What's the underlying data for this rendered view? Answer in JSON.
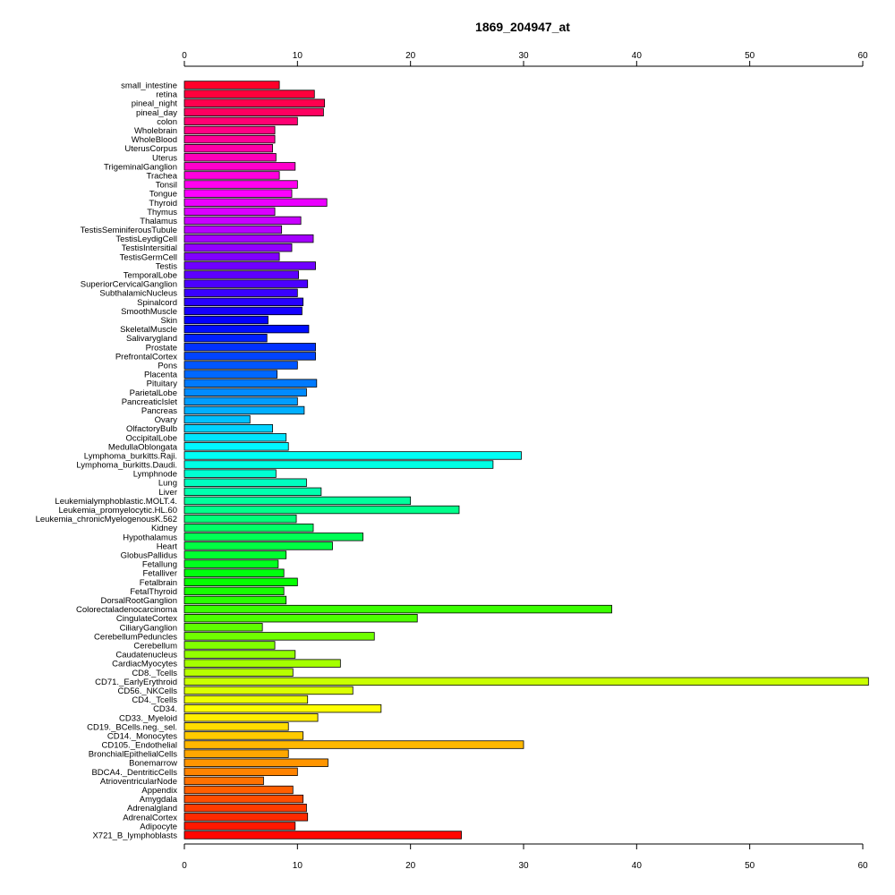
{
  "chart_data": {
    "type": "bar",
    "orientation": "horizontal",
    "title": "1869_204947_at",
    "xlabel": "",
    "ylabel": "",
    "xlim": [
      0,
      60
    ],
    "xticks": [
      0,
      10,
      20,
      30,
      40,
      50,
      60
    ],
    "xtick_labels": [
      "0",
      "10",
      "20",
      "30",
      "40",
      "50",
      "60"
    ],
    "axes": "top-and-bottom",
    "grid": false,
    "legend": "none",
    "color_scheme": "rainbow",
    "categories": [
      "small_intestine",
      "retina",
      "pineal_night",
      "pineal_day",
      "colon",
      "Wholebrain",
      "WholeBlood",
      "UterusCorpus",
      "Uterus",
      "TrigeminalGanglion",
      "Trachea",
      "Tonsil",
      "Tongue",
      "Thyroid",
      "Thymus",
      "Thalamus",
      "TestisSeminiferousTubule",
      "TestisLeydigCell",
      "TestisIntersitial",
      "TestisGermCell",
      "Testis",
      "TemporalLobe",
      "SuperiorCervicalGanglion",
      "SubthalamicNucleus",
      "Spinalcord",
      "SmoothMuscle",
      "Skin",
      "SkeletalMuscle",
      "Salivarygland",
      "Prostate",
      "PrefrontalCortex",
      "Pons",
      "Placenta",
      "Pituitary",
      "ParietalLobe",
      "PancreaticIslet",
      "Pancreas",
      "Ovary",
      "OlfactoryBulb",
      "OccipitalLobe",
      "MedullaOblongata",
      "Lymphoma_burkitts.Raji.",
      "Lymphoma_burkitts.Daudi.",
      "Lymphnode",
      "Lung",
      "Liver",
      "Leukemialymphoblastic.MOLT.4.",
      "Leukemia_promyelocytic.HL.60",
      "Leukemia_chronicMyelogenousK.562",
      "Kidney",
      "Hypothalamus",
      "Heart",
      "GlobusPallidus",
      "Fetallung",
      "Fetalliver",
      "Fetalbrain",
      "FetalThyroid",
      "DorsalRootGanglion",
      "Colorectaladenocarcinoma",
      "CingulateCortex",
      "CiliaryGanglion",
      "CerebellumPeduncles",
      "Cerebellum",
      "Caudatenucleus",
      "CardiacMyocytes",
      "CD8._Tcells",
      "CD71._EarlyErythroid",
      "CD56._NKCells",
      "CD4._Tcells",
      "CD34.",
      "CD33._Myeloid",
      "CD19._BCells.neg._sel.",
      "CD14._Monocytes",
      "CD105._Endothelial",
      "BronchialEpithelialCells",
      "Bonemarrow",
      "BDCA4._DentriticCells",
      "AtrioventricularNode",
      "Appendix",
      "Amygdala",
      "Adrenalgland",
      "AdrenalCortex",
      "Adipocyte",
      "X721_B_lymphoblasts"
    ],
    "values": [
      8.4,
      11.5,
      12.4,
      12.3,
      10.0,
      8.0,
      8.0,
      7.8,
      8.1,
      9.8,
      8.4,
      10.0,
      9.5,
      12.6,
      8.0,
      10.3,
      8.6,
      11.4,
      9.5,
      8.4,
      11.6,
      10.1,
      10.9,
      10.0,
      10.5,
      10.4,
      7.4,
      11.0,
      7.3,
      11.6,
      11.6,
      10.0,
      8.2,
      11.7,
      10.8,
      10.0,
      10.6,
      5.8,
      7.8,
      9.0,
      9.2,
      29.8,
      27.3,
      8.1,
      10.8,
      12.1,
      20.0,
      24.3,
      9.9,
      11.4,
      15.8,
      13.1,
      9.0,
      8.3,
      8.8,
      10.0,
      8.8,
      9.0,
      37.8,
      20.6,
      6.9,
      16.8,
      8.0,
      9.8,
      13.8,
      9.6,
      60.5,
      14.9,
      10.9,
      17.4,
      11.8,
      9.2,
      10.5,
      30.0,
      9.2,
      12.7,
      10.0,
      7.0,
      9.6,
      10.5,
      10.8,
      10.9,
      9.8,
      24.5
    ]
  }
}
